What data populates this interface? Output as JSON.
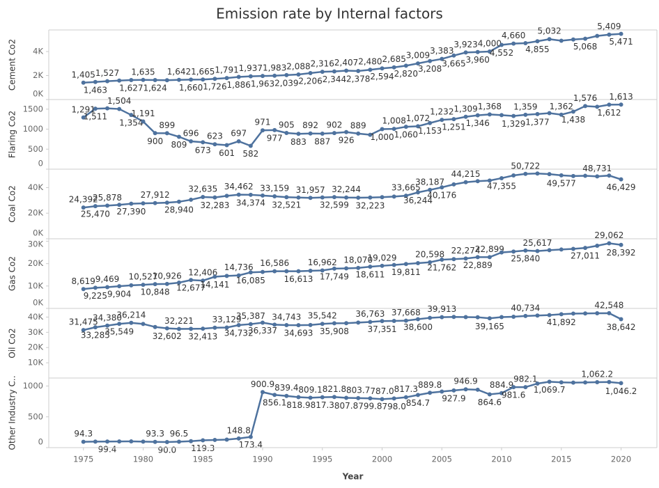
{
  "title": "Emission rate by Internal factors",
  "chart_data": [
    {
      "type": "line",
      "ylabel": "Cement Co2",
      "color": "#4e729e",
      "x": [
        1975,
        1976,
        1977,
        1978,
        1979,
        1980,
        1981,
        1982,
        1983,
        1984,
        1985,
        1986,
        1987,
        1988,
        1989,
        1990,
        1991,
        1992,
        1993,
        1994,
        1995,
        1996,
        1997,
        1998,
        1999,
        2000,
        2001,
        2002,
        2003,
        2004,
        2005,
        2006,
        2007,
        2008,
        2009,
        2010,
        2011,
        2012,
        2013,
        2014,
        2015,
        2016,
        2017,
        2018,
        2019,
        2020
      ],
      "values": [
        1405,
        1463,
        1527,
        1580,
        1627,
        1635,
        1624,
        1610,
        1642,
        1660,
        1665,
        1726,
        1791,
        1886,
        1937,
        1963,
        1983,
        2039,
        2088,
        2206,
        2316,
        2344,
        2407,
        2378,
        2480,
        2594,
        2685,
        2820,
        3009,
        3208,
        3383,
        3665,
        3923,
        3960,
        4000,
        4552,
        4660,
        4700,
        4855,
        5032,
        4900,
        5000,
        5068,
        5300,
        5409,
        5471
      ],
      "value_labels": [
        "1,405",
        "1,463",
        "1,527",
        null,
        "1,627",
        "1,635",
        "1,624",
        null,
        "1,642",
        "1,660",
        "1,665",
        "1,726",
        "1,791",
        "1,886",
        "1,937",
        "1,963",
        "1,983",
        "2,039",
        "2,088",
        "2,206",
        "2,316",
        "2,344",
        "2,407",
        "2,378",
        "2,480",
        "2,594",
        "2,685",
        "2,820",
        "3,009",
        "3,208",
        "3,383",
        "3,665",
        "3,923",
        "3,960",
        "4,000",
        "4,552",
        "4,660",
        null,
        "4,855",
        "5,032",
        null,
        null,
        "5,068",
        null,
        "5,409",
        "5,471"
      ],
      "xlim": [
        1972.1,
        2023
      ],
      "ylim": [
        0,
        5800
      ],
      "yticks": [
        {
          "value": 0,
          "label": "0K"
        },
        {
          "value": 2000,
          "label": "2K"
        },
        {
          "value": 4000,
          "label": "4K"
        }
      ]
    },
    {
      "type": "line",
      "ylabel": "Flaring Co2",
      "color": "#4e729e",
      "x": [
        1975,
        1976,
        1977,
        1978,
        1979,
        1980,
        1981,
        1982,
        1983,
        1984,
        1985,
        1986,
        1987,
        1988,
        1989,
        1990,
        1991,
        1992,
        1993,
        1994,
        1995,
        1996,
        1997,
        1998,
        1999,
        2000,
        2001,
        2002,
        2003,
        2004,
        2005,
        2006,
        2007,
        2008,
        2009,
        2010,
        2011,
        2012,
        2013,
        2014,
        2015,
        2016,
        2017,
        2018,
        2019,
        2020
      ],
      "values": [
        1291,
        1511,
        1520,
        1504,
        1354,
        1191,
        900,
        899,
        809,
        696,
        673,
        623,
        601,
        697,
        582,
        971,
        977,
        905,
        883,
        892,
        887,
        902,
        926,
        889,
        860,
        1000,
        1008,
        1060,
        1072,
        1153,
        1232,
        1251,
        1309,
        1346,
        1368,
        1350,
        1329,
        1359,
        1377,
        1400,
        1362,
        1438,
        1576,
        1560,
        1612,
        1613
      ],
      "value_labels": [
        "1,291",
        "1,511",
        null,
        "1,504",
        "1,354",
        "1,191",
        "900",
        "899",
        "809",
        "696",
        "673",
        "623",
        "601",
        "697",
        "582",
        "971",
        "977",
        "905",
        "883",
        "892",
        "887",
        "902",
        "926",
        "889",
        null,
        "1,000",
        "1,008",
        "1,060",
        "1,072",
        "1,153",
        "1,232",
        "1,251",
        "1,309",
        "1,346",
        "1,368",
        null,
        "1,329",
        "1,359",
        "1,377",
        null,
        "1,362",
        "1,438",
        "1,576",
        null,
        "1,612",
        "1,613"
      ],
      "xlim": [
        1972.1,
        2023
      ],
      "ylim": [
        0,
        1740
      ],
      "yticks": [
        0,
        500,
        1000,
        1500
      ]
    },
    {
      "type": "line",
      "ylabel": "Coal Co2",
      "color": "#4e729e",
      "x": [
        1975,
        1976,
        1977,
        1978,
        1979,
        1980,
        1981,
        1982,
        1983,
        1984,
        1985,
        1986,
        1987,
        1988,
        1989,
        1990,
        1991,
        1992,
        1993,
        1994,
        1995,
        1996,
        1997,
        1998,
        1999,
        2000,
        2001,
        2002,
        2003,
        2004,
        2005,
        2006,
        2007,
        2008,
        2009,
        2010,
        2011,
        2012,
        2013,
        2014,
        2015,
        2016,
        2017,
        2018,
        2019,
        2020
      ],
      "values": [
        24392,
        25470,
        25878,
        26500,
        27390,
        27700,
        27912,
        28200,
        28940,
        30500,
        32635,
        32283,
        33500,
        34462,
        34374,
        33800,
        33159,
        32521,
        32200,
        31957,
        32300,
        32599,
        32244,
        32100,
        32223,
        32500,
        33000,
        33665,
        36244,
        38187,
        40176,
        42500,
        44215,
        45000,
        45500,
        47355,
        49500,
        50722,
        51000,
        50500,
        49577,
        49000,
        49200,
        48731,
        49400,
        46429
      ],
      "value_labels": [
        "24,392",
        "25,470",
        "25,878",
        null,
        "27,390",
        null,
        "27,912",
        null,
        "28,940",
        null,
        "32,635",
        "32,283",
        null,
        "34,462",
        "34,374",
        null,
        "33,159",
        "32,521",
        null,
        "31,957",
        null,
        "32,599",
        "32,244",
        null,
        "32,223",
        null,
        null,
        "33,665",
        "36,244",
        "38,187",
        "40,176",
        null,
        "44,215",
        null,
        null,
        "47,355",
        null,
        "50,722",
        null,
        null,
        "49,577",
        null,
        null,
        "48,731",
        null,
        "46,429"
      ],
      "xlim": [
        1972.1,
        2023
      ],
      "ylim": [
        0,
        54400
      ],
      "yticks": [
        {
          "value": 0,
          "label": "0K"
        },
        {
          "value": 20000,
          "label": "20K"
        },
        {
          "value": 40000,
          "label": "40K"
        }
      ]
    },
    {
      "type": "line",
      "ylabel": "Gas Co2",
      "color": "#4e729e",
      "x": [
        1975,
        1976,
        1977,
        1978,
        1979,
        1980,
        1981,
        1982,
        1983,
        1984,
        1985,
        1986,
        1987,
        1988,
        1989,
        1990,
        1991,
        1992,
        1993,
        1994,
        1995,
        1996,
        1997,
        1998,
        1999,
        2000,
        2001,
        2002,
        2003,
        2004,
        2005,
        2006,
        2007,
        2008,
        2009,
        2010,
        2011,
        2012,
        2013,
        2014,
        2015,
        2016,
        2017,
        2018,
        2019,
        2020
      ],
      "values": [
        8619,
        9225,
        9469,
        9904,
        10300,
        10527,
        10848,
        10926,
        11500,
        12677,
        12406,
        14141,
        14500,
        14736,
        16085,
        16300,
        16586,
        16600,
        16613,
        16800,
        16962,
        17749,
        17900,
        18070,
        18611,
        19029,
        19400,
        19811,
        20200,
        20598,
        21762,
        22000,
        22274,
        22889,
        22899,
        25000,
        25400,
        25840,
        25617,
        26000,
        26300,
        26600,
        27011,
        28000,
        29062,
        28392
      ],
      "value_labels": [
        "8,619",
        "9,225",
        "9,469",
        "9,904",
        null,
        "10,527",
        "10,848",
        "10,926",
        null,
        "12,677",
        "12,406",
        "14,141",
        null,
        "14,736",
        "16,085",
        null,
        "16,586",
        null,
        "16,613",
        null,
        "16,962",
        "17,749",
        null,
        "18,070",
        "18,611",
        "19,029",
        null,
        "19,811",
        null,
        "20,598",
        "21,762",
        null,
        "22,274",
        "22,889",
        "22,899",
        null,
        null,
        "25,840",
        "25,617",
        null,
        null,
        null,
        "27,011",
        null,
        "29,062",
        "28,392"
      ],
      "xlim": [
        1972.1,
        2023
      ],
      "ylim": [
        0,
        31100
      ],
      "yticks": [
        {
          "value": 0,
          "label": "0K"
        },
        {
          "value": 10000,
          "label": "10K"
        },
        {
          "value": 20000,
          "label": "20K"
        },
        {
          "value": 30000,
          "label": "30K"
        }
      ]
    },
    {
      "type": "line",
      "ylabel": "Oil Co2",
      "color": "#4e729e",
      "x": [
        1975,
        1976,
        1977,
        1978,
        1979,
        1980,
        1981,
        1982,
        1983,
        1984,
        1985,
        1986,
        1987,
        1988,
        1989,
        1990,
        1991,
        1992,
        1993,
        1994,
        1995,
        1996,
        1997,
        1998,
        1999,
        2000,
        2001,
        2002,
        2003,
        2004,
        2005,
        2006,
        2007,
        2008,
        2009,
        2010,
        2011,
        2012,
        2013,
        2014,
        2015,
        2016,
        2017,
        2018,
        2019,
        2020
      ],
      "values": [
        31475,
        33285,
        34380,
        35549,
        36214,
        35500,
        33500,
        32602,
        32221,
        32300,
        32413,
        33000,
        33129,
        34732,
        35387,
        36337,
        35000,
        34743,
        34693,
        34800,
        35542,
        35908,
        36000,
        36400,
        36763,
        37351,
        37500,
        37668,
        38600,
        39500,
        39913,
        40100,
        40000,
        39900,
        39165,
        40000,
        40200,
        40734,
        41000,
        41300,
        41892,
        42300,
        42400,
        42500,
        42548,
        38642
      ],
      "value_labels": [
        "31,475",
        "33,285",
        "34,380",
        "35,549",
        "36,214",
        null,
        null,
        "32,602",
        "32,221",
        null,
        "32,413",
        null,
        "33,129",
        "34,732",
        "35,387",
        "36,337",
        null,
        "34,743",
        "34,693",
        null,
        "35,542",
        "35,908",
        null,
        null,
        "36,763",
        "37,351",
        null,
        "37,668",
        "38,600",
        null,
        "39,913",
        null,
        null,
        null,
        "39,165",
        null,
        null,
        "40,734",
        null,
        null,
        "41,892",
        null,
        null,
        null,
        "42,548",
        "38,642"
      ],
      "xlim": [
        1972.1,
        2023
      ],
      "ylim": [
        0,
        45700
      ],
      "yticks": [
        {
          "value": 10000,
          "label": "10K"
        },
        {
          "value": 20000,
          "label": "20K"
        },
        {
          "value": 30000,
          "label": "30K"
        },
        {
          "value": 40000,
          "label": "40K"
        }
      ]
    },
    {
      "type": "line",
      "ylabel": "Other Industry C..",
      "color": "#4e729e",
      "xlabel": "Year",
      "x": [
        1975,
        1976,
        1977,
        1978,
        1979,
        1980,
        1981,
        1982,
        1983,
        1984,
        1985,
        1986,
        1987,
        1988,
        1989,
        1990,
        1991,
        1992,
        1993,
        1994,
        1995,
        1996,
        1997,
        1998,
        1999,
        2000,
        2001,
        2002,
        2003,
        2004,
        2005,
        2006,
        2007,
        2008,
        2009,
        2010,
        2011,
        2012,
        2013,
        2014,
        2015,
        2016,
        2017,
        2018,
        2019,
        2020
      ],
      "values": [
        94.3,
        97,
        99.4,
        100,
        101,
        98,
        93.3,
        90,
        96.5,
        105,
        119.3,
        125,
        130,
        148.8,
        173.4,
        900.9,
        856.1,
        839.4,
        818.9,
        809.1,
        817.3,
        821.8,
        807.8,
        803.7,
        799.8,
        787,
        798,
        817.3,
        854.7,
        889.8,
        910,
        927.9,
        946.9,
        940,
        864.6,
        884.9,
        981.6,
        982.1,
        1040,
        1069.7,
        1060,
        1055,
        1058,
        1062.2,
        1065,
        1046.2
      ],
      "value_labels": [
        "94.3",
        null,
        "99.4",
        null,
        null,
        null,
        "93.3",
        "90.0",
        "96.5",
        null,
        "119.3",
        null,
        null,
        "148.8",
        "173.4",
        "900.9",
        "856.1",
        "839.4",
        "818.9",
        "809.1",
        "817.3",
        "821.8",
        "807.8",
        "803.7",
        "799.8",
        "787.0",
        "798.0",
        "817.3",
        "854.7",
        "889.8",
        null,
        "927.9",
        "946.9",
        null,
        "864.6",
        "884.9",
        "981.6",
        "982.1",
        null,
        "1,069.7",
        null,
        null,
        null,
        "1,062.2",
        null,
        "1,046.2"
      ],
      "xlim": [
        1972.1,
        2023
      ],
      "ylim": [
        0,
        1130
      ],
      "yticks": [
        0,
        500,
        1000
      ],
      "xticks": [
        1975,
        1980,
        1985,
        1990,
        1995,
        2000,
        2005,
        2010,
        2015,
        2020
      ]
    }
  ]
}
